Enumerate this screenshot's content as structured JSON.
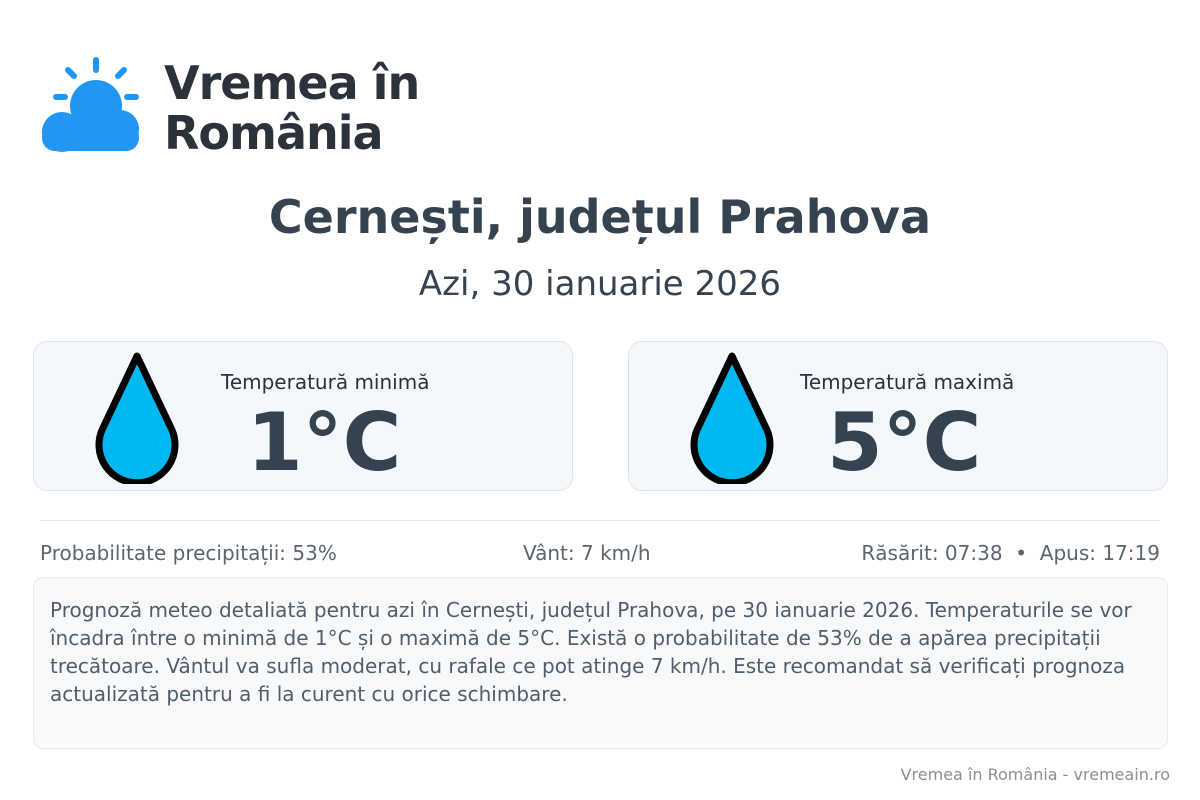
{
  "brand": {
    "line1": "Vremea în",
    "line2": "România",
    "icon": "sun-cloud-icon",
    "color": "#2196f3"
  },
  "header": {
    "title": "Cernești, județul Prahova",
    "date": "Azi, 30 ianuarie 2026"
  },
  "cards": [
    {
      "label": "Temperatură minimă",
      "value": "1°C",
      "icon": "water-drop-icon"
    },
    {
      "label": "Temperatură maximă",
      "value": "5°C",
      "icon": "water-drop-icon"
    }
  ],
  "stats": {
    "precip": "Probabilitate precipitații: 53%",
    "wind": "Vânt: 7 km/h",
    "sun": "Răsărit: 07:38  •  Apus: 17:19"
  },
  "description": "Prognoză meteo detaliată pentru azi în Cernești, județul Prahova, pe 30 ianuarie 2026. Temperaturile se vor încadra între o minimă de 1°C și o maximă de 5°C. Există o probabilitate de 53% de a apărea precipitații trecătoare. Vântul va sufla moderat, cu rafale ce pot atinge 7 km/h. Este recomandat să verificați prognoza actualizată pentru a fi la curent cu orice schimbare.",
  "footer": "Vremea în România - vremeain.ro"
}
